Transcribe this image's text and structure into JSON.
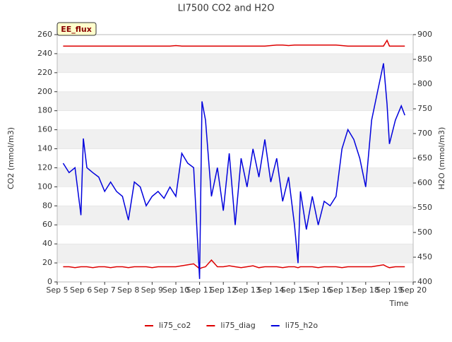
{
  "chart_data": {
    "type": "line",
    "title": "LI7500 CO2 and H2O",
    "xlabel": "Time",
    "ylabel": "CO2 (mmol/m3)",
    "y2label": "H2O (mmol/m3)",
    "annotation": "EE_flux",
    "x": [
      5.25,
      5.5,
      5.75,
      6.0,
      6.1,
      6.25,
      6.5,
      6.75,
      7.0,
      7.25,
      7.5,
      7.75,
      8.0,
      8.25,
      8.5,
      8.75,
      9.0,
      9.25,
      9.5,
      9.75,
      10.0,
      10.25,
      10.5,
      10.75,
      11.0,
      11.1,
      11.25,
      11.5,
      11.75,
      12.0,
      12.25,
      12.5,
      12.75,
      13.0,
      13.25,
      13.5,
      13.75,
      14.0,
      14.25,
      14.5,
      14.75,
      15.0,
      15.15,
      15.25,
      15.5,
      15.75,
      16.0,
      16.25,
      16.5,
      16.75,
      17.0,
      17.25,
      17.5,
      17.75,
      18.0,
      18.25,
      18.5,
      18.75,
      18.9,
      19.0,
      19.25,
      19.5,
      19.65
    ],
    "xlim": [
      5,
      20
    ],
    "xticks": [
      {
        "value": 5,
        "label": "Sep 5"
      },
      {
        "value": 6,
        "label": "Sep 6"
      },
      {
        "value": 7,
        "label": "Sep 7"
      },
      {
        "value": 8,
        "label": "Sep 8"
      },
      {
        "value": 9,
        "label": "Sep 9"
      },
      {
        "value": 10,
        "label": "Sep 10"
      },
      {
        "value": 11,
        "label": "Sep 11"
      },
      {
        "value": 12,
        "label": "Sep 12"
      },
      {
        "value": 13,
        "label": "Sep 13"
      },
      {
        "value": 14,
        "label": "Sep 14"
      },
      {
        "value": 15,
        "label": "Sep 15"
      },
      {
        "value": 16,
        "label": "Sep 16"
      },
      {
        "value": 17,
        "label": "Sep 17"
      },
      {
        "value": 18,
        "label": "Sep 18"
      },
      {
        "value": 19,
        "label": "Sep 19"
      },
      {
        "value": 20,
        "label": "Sep 20"
      }
    ],
    "ylim": [
      0,
      260
    ],
    "yticks": [
      0,
      20,
      40,
      60,
      80,
      100,
      120,
      140,
      160,
      180,
      200,
      220,
      240,
      260
    ],
    "y2lim": [
      400,
      900
    ],
    "y2ticks": [
      400,
      450,
      500,
      550,
      600,
      650,
      700,
      750,
      800,
      850,
      900
    ],
    "grid": true,
    "legend": "bottom",
    "series": [
      {
        "name": "li75_co2",
        "color": "#dd0000",
        "values": [
          248,
          248,
          248,
          248,
          248,
          248,
          248,
          248,
          248,
          248,
          248,
          248,
          248,
          248,
          248,
          248,
          248,
          248,
          248,
          248,
          248.5,
          248,
          248,
          248,
          248,
          248,
          248,
          248,
          248,
          248,
          248,
          248,
          248,
          248,
          248,
          248,
          248,
          248.5,
          249,
          249,
          248.5,
          249,
          249,
          249,
          249,
          249,
          249,
          249,
          249,
          249,
          248.5,
          248,
          248,
          248,
          248,
          248,
          248,
          248,
          254,
          248,
          248,
          248,
          248
        ]
      },
      {
        "name": "li75_diag",
        "color": "#dd0000",
        "values": [
          16,
          16,
          15,
          16,
          16,
          16,
          15,
          16,
          16,
          15,
          16,
          16,
          15,
          16,
          16,
          16,
          15,
          16,
          16,
          16,
          16,
          17,
          18,
          19,
          14,
          15,
          16,
          23,
          16,
          16,
          17,
          16,
          15,
          16,
          17,
          15,
          16,
          16,
          16,
          15,
          16,
          16,
          15,
          16,
          16,
          16,
          15,
          16,
          16,
          16,
          15,
          16,
          16,
          16,
          16,
          16,
          17,
          18,
          16,
          15,
          16,
          16,
          16
        ]
      },
      {
        "name": "li75_h2o",
        "color": "#0000dd",
        "axis": "y2",
        "values": [
          640,
          621,
          631,
          535,
          690,
          631,
          621,
          612,
          583,
          602,
          583,
          573,
          525,
          602,
          592,
          554,
          573,
          583,
          569,
          592,
          573,
          660,
          640,
          631,
          406,
          765,
          727,
          573,
          631,
          544,
          660,
          515,
          650,
          592,
          669,
          612,
          688,
          602,
          650,
          563,
          612,
          515,
          438,
          583,
          506,
          573,
          515,
          563,
          554,
          573,
          669,
          708,
          688,
          650,
          592,
          727,
          785,
          842,
          760,
          679,
          727,
          756,
          737
        ]
      }
    ]
  }
}
